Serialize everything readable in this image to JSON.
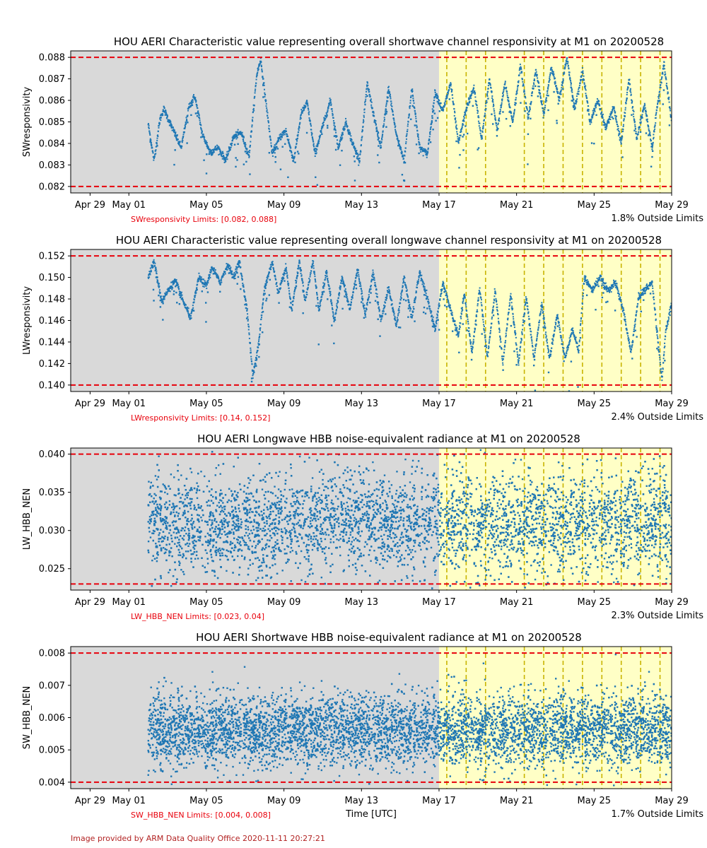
{
  "x_axis_label": "Time [UTC]",
  "credit": "Image provided by ARM Data Quality Office 2020-11-11 20:27:21",
  "colors": {
    "series": "#1f77b4",
    "limits": "#e8000b",
    "flag_lines": "#c8b400",
    "flag_region": "#ffffc6",
    "missing_region": "#d9d9d9"
  },
  "chart_data": [
    {
      "type": "scatter",
      "title": "HOU AERI Characteristic value representing overall shortwave channel responsivity at M1 on 20200528",
      "ylabel": "SWresponsivity",
      "xlabel": "",
      "x_ticks": [
        "Apr 29",
        "May 01",
        "May 05",
        "May 09",
        "May 13",
        "May 17",
        "May 21",
        "May 25",
        "May 29"
      ],
      "x_tick_days": [
        -2,
        0,
        4,
        8,
        12,
        16,
        20,
        24,
        28
      ],
      "xlim_days": [
        -3,
        28
      ],
      "ylim": [
        0.0817,
        0.0883
      ],
      "y_ticks": [
        "0.082",
        "0.083",
        "0.084",
        "0.085",
        "0.086",
        "0.087",
        "0.088"
      ],
      "limits_text": "SWresponsivity Limits: [0.082, 0.088]",
      "limits": [
        0.082,
        0.088
      ],
      "outside_text": "1.8% Outside Limits",
      "missing_region_days": [
        -3,
        16
      ],
      "flag_region_days": [
        16,
        28
      ],
      "flag_lines_days": [
        16.4,
        17.4,
        18.4,
        20.4,
        21.4,
        22.4,
        23.4,
        24.4,
        25.4,
        26.4,
        27.4
      ],
      "data_start_day": 1.0,
      "data_end_day": 28.0,
      "segments": [
        {
          "day": 1.0,
          "value": 0.0849
        },
        {
          "day": 1.3,
          "value": 0.0832
        },
        {
          "day": 1.6,
          "value": 0.0851
        },
        {
          "day": 1.8,
          "value": 0.0856
        },
        {
          "day": 2.3,
          "value": 0.0846
        },
        {
          "day": 2.7,
          "value": 0.0838
        },
        {
          "day": 3.1,
          "value": 0.0857
        },
        {
          "day": 3.4,
          "value": 0.0862
        },
        {
          "day": 3.8,
          "value": 0.0844
        },
        {
          "day": 4.2,
          "value": 0.0836
        },
        {
          "day": 4.6,
          "value": 0.0838
        },
        {
          "day": 5.0,
          "value": 0.0832
        },
        {
          "day": 5.4,
          "value": 0.0843
        },
        {
          "day": 5.8,
          "value": 0.0845
        },
        {
          "day": 6.2,
          "value": 0.0834
        },
        {
          "day": 6.6,
          "value": 0.0872
        },
        {
          "day": 6.8,
          "value": 0.0879
        },
        {
          "day": 7.1,
          "value": 0.0857
        },
        {
          "day": 7.4,
          "value": 0.0835
        },
        {
          "day": 7.8,
          "value": 0.0843
        },
        {
          "day": 8.1,
          "value": 0.0846
        },
        {
          "day": 8.5,
          "value": 0.0832
        },
        {
          "day": 8.9,
          "value": 0.0854
        },
        {
          "day": 9.2,
          "value": 0.0859
        },
        {
          "day": 9.6,
          "value": 0.0835
        },
        {
          "day": 10.0,
          "value": 0.0848
        },
        {
          "day": 10.4,
          "value": 0.086
        },
        {
          "day": 10.8,
          "value": 0.0838
        },
        {
          "day": 11.2,
          "value": 0.085
        },
        {
          "day": 11.5,
          "value": 0.0841
        },
        {
          "day": 11.9,
          "value": 0.0832
        },
        {
          "day": 12.3,
          "value": 0.0868
        },
        {
          "day": 12.7,
          "value": 0.085
        },
        {
          "day": 13.0,
          "value": 0.0838
        },
        {
          "day": 13.4,
          "value": 0.0866
        },
        {
          "day": 13.8,
          "value": 0.0844
        },
        {
          "day": 14.2,
          "value": 0.0832
        },
        {
          "day": 14.6,
          "value": 0.0866
        },
        {
          "day": 15.0,
          "value": 0.0838
        },
        {
          "day": 15.4,
          "value": 0.0835
        },
        {
          "day": 15.8,
          "value": 0.0864
        },
        {
          "day": 16.2,
          "value": 0.0855
        },
        {
          "day": 16.6,
          "value": 0.0868
        },
        {
          "day": 17.0,
          "value": 0.084
        },
        {
          "day": 17.4,
          "value": 0.0856
        },
        {
          "day": 17.8,
          "value": 0.0866
        },
        {
          "day": 18.2,
          "value": 0.0842
        },
        {
          "day": 18.6,
          "value": 0.087
        },
        {
          "day": 19.0,
          "value": 0.0846
        },
        {
          "day": 19.4,
          "value": 0.0868
        },
        {
          "day": 19.8,
          "value": 0.085
        },
        {
          "day": 20.2,
          "value": 0.0876
        },
        {
          "day": 20.6,
          "value": 0.0852
        },
        {
          "day": 21.0,
          "value": 0.0874
        },
        {
          "day": 21.4,
          "value": 0.0853
        },
        {
          "day": 21.8,
          "value": 0.0876
        },
        {
          "day": 22.2,
          "value": 0.086
        },
        {
          "day": 22.6,
          "value": 0.088
        },
        {
          "day": 23.0,
          "value": 0.0856
        },
        {
          "day": 23.4,
          "value": 0.0874
        },
        {
          "day": 23.8,
          "value": 0.085
        },
        {
          "day": 24.2,
          "value": 0.086
        },
        {
          "day": 24.6,
          "value": 0.0847
        },
        {
          "day": 25.0,
          "value": 0.0857
        },
        {
          "day": 25.4,
          "value": 0.084
        },
        {
          "day": 25.8,
          "value": 0.087
        },
        {
          "day": 26.2,
          "value": 0.0842
        },
        {
          "day": 26.6,
          "value": 0.0858
        },
        {
          "day": 27.0,
          "value": 0.0838
        },
        {
          "day": 27.3,
          "value": 0.086
        },
        {
          "day": 27.6,
          "value": 0.0877
        },
        {
          "day": 28.0,
          "value": 0.085
        }
      ]
    },
    {
      "type": "scatter",
      "title": "HOU AERI Characteristic value representing overall longwave channel responsivity at M1 on 20200528",
      "ylabel": "LWresponsivity",
      "xlabel": "",
      "x_ticks": [
        "Apr 29",
        "May 01",
        "May 05",
        "May 09",
        "May 13",
        "May 17",
        "May 21",
        "May 25",
        "May 29"
      ],
      "x_tick_days": [
        -2,
        0,
        4,
        8,
        12,
        16,
        20,
        24,
        28
      ],
      "xlim_days": [
        -3,
        28
      ],
      "ylim": [
        0.1394,
        0.1526
      ],
      "y_ticks": [
        "0.140",
        "0.142",
        "0.144",
        "0.146",
        "0.148",
        "0.150",
        "0.152"
      ],
      "limits_text": "LWresponsivity Limits: [0.14, 0.152]",
      "limits": [
        0.14,
        0.152
      ],
      "outside_text": "2.4% Outside Limits",
      "missing_region_days": [
        -3,
        16
      ],
      "flag_region_days": [
        16,
        28
      ],
      "flag_lines_days": [
        16.4,
        17.4,
        18.4,
        20.4,
        21.4,
        22.4,
        23.4,
        24.4,
        25.4,
        26.4,
        27.4
      ],
      "data_start_day": 1.0,
      "data_end_day": 28.0,
      "segments": [
        {
          "day": 1.0,
          "value": 0.15
        },
        {
          "day": 1.3,
          "value": 0.1515
        },
        {
          "day": 1.7,
          "value": 0.1478
        },
        {
          "day": 2.1,
          "value": 0.149
        },
        {
          "day": 2.4,
          "value": 0.1497
        },
        {
          "day": 2.8,
          "value": 0.1478
        },
        {
          "day": 3.2,
          "value": 0.1462
        },
        {
          "day": 3.6,
          "value": 0.15
        },
        {
          "day": 4.0,
          "value": 0.1492
        },
        {
          "day": 4.3,
          "value": 0.151
        },
        {
          "day": 4.7,
          "value": 0.1495
        },
        {
          "day": 5.1,
          "value": 0.1512
        },
        {
          "day": 5.4,
          "value": 0.15
        },
        {
          "day": 5.7,
          "value": 0.1515
        },
        {
          "day": 6.1,
          "value": 0.147
        },
        {
          "day": 6.4,
          "value": 0.1408
        },
        {
          "day": 6.7,
          "value": 0.144
        },
        {
          "day": 7.0,
          "value": 0.149
        },
        {
          "day": 7.4,
          "value": 0.1515
        },
        {
          "day": 7.7,
          "value": 0.1485
        },
        {
          "day": 8.1,
          "value": 0.151
        },
        {
          "day": 8.4,
          "value": 0.147
        },
        {
          "day": 8.8,
          "value": 0.1515
        },
        {
          "day": 9.1,
          "value": 0.1478
        },
        {
          "day": 9.5,
          "value": 0.1515
        },
        {
          "day": 9.8,
          "value": 0.147
        },
        {
          "day": 10.2,
          "value": 0.1505
        },
        {
          "day": 10.6,
          "value": 0.146
        },
        {
          "day": 11.0,
          "value": 0.15
        },
        {
          "day": 11.4,
          "value": 0.147
        },
        {
          "day": 11.8,
          "value": 0.1508
        },
        {
          "day": 12.2,
          "value": 0.1465
        },
        {
          "day": 12.6,
          "value": 0.1505
        },
        {
          "day": 13.0,
          "value": 0.146
        },
        {
          "day": 13.4,
          "value": 0.149
        },
        {
          "day": 13.8,
          "value": 0.1455
        },
        {
          "day": 14.2,
          "value": 0.15
        },
        {
          "day": 14.6,
          "value": 0.1462
        },
        {
          "day": 15.0,
          "value": 0.1505
        },
        {
          "day": 15.4,
          "value": 0.148
        },
        {
          "day": 15.8,
          "value": 0.1452
        },
        {
          "day": 16.2,
          "value": 0.1495
        },
        {
          "day": 16.6,
          "value": 0.147
        },
        {
          "day": 17.0,
          "value": 0.1445
        },
        {
          "day": 17.3,
          "value": 0.1485
        },
        {
          "day": 17.7,
          "value": 0.143
        },
        {
          "day": 18.1,
          "value": 0.149
        },
        {
          "day": 18.5,
          "value": 0.1425
        },
        {
          "day": 18.9,
          "value": 0.1488
        },
        {
          "day": 19.3,
          "value": 0.142
        },
        {
          "day": 19.7,
          "value": 0.1485
        },
        {
          "day": 20.1,
          "value": 0.142
        },
        {
          "day": 20.5,
          "value": 0.1482
        },
        {
          "day": 20.9,
          "value": 0.1425
        },
        {
          "day": 21.3,
          "value": 0.1475
        },
        {
          "day": 21.7,
          "value": 0.1425
        },
        {
          "day": 22.1,
          "value": 0.1465
        },
        {
          "day": 22.5,
          "value": 0.1425
        },
        {
          "day": 22.9,
          "value": 0.1452
        },
        {
          "day": 23.2,
          "value": 0.1432
        },
        {
          "day": 23.5,
          "value": 0.15
        },
        {
          "day": 23.9,
          "value": 0.1488
        },
        {
          "day": 24.3,
          "value": 0.15
        },
        {
          "day": 24.7,
          "value": 0.1488
        },
        {
          "day": 25.1,
          "value": 0.1495
        },
        {
          "day": 25.5,
          "value": 0.147
        },
        {
          "day": 25.9,
          "value": 0.143
        },
        {
          "day": 26.3,
          "value": 0.1482
        },
        {
          "day": 26.7,
          "value": 0.149
        },
        {
          "day": 27.0,
          "value": 0.1495
        },
        {
          "day": 27.3,
          "value": 0.144
        },
        {
          "day": 27.5,
          "value": 0.1405
        },
        {
          "day": 27.7,
          "value": 0.145
        },
        {
          "day": 28.0,
          "value": 0.1475
        }
      ]
    },
    {
      "type": "scatter",
      "title": "HOU AERI Longwave HBB noise-equivalent radiance at M1 on 20200528",
      "ylabel": "LW_HBB_NEN",
      "xlabel": "",
      "x_ticks": [
        "Apr 29",
        "May 01",
        "May 05",
        "May 09",
        "May 13",
        "May 17",
        "May 21",
        "May 25",
        "May 29"
      ],
      "x_tick_days": [
        -2,
        0,
        4,
        8,
        12,
        16,
        20,
        24,
        28
      ],
      "xlim_days": [
        -3,
        28
      ],
      "ylim": [
        0.0222,
        0.0408
      ],
      "y_ticks": [
        "0.025",
        "0.030",
        "0.035",
        "0.040"
      ],
      "limits_text": "LW_HBB_NEN Limits: [0.023, 0.04]",
      "limits": [
        0.023,
        0.04
      ],
      "outside_text": "2.3% Outside Limits",
      "missing_region_days": [
        -3,
        16
      ],
      "flag_region_days": [
        16,
        28
      ],
      "flag_lines_days": [
        16.4,
        17.4,
        18.4,
        20.4,
        21.4,
        22.4,
        23.4,
        24.4,
        25.4,
        26.4,
        27.4
      ],
      "data_start_day": 1.0,
      "data_end_day": 28.0,
      "center": 0.031,
      "spread": 0.0032
    },
    {
      "type": "scatter",
      "title": "HOU AERI Shortwave HBB noise-equivalent radiance at M1 on 20200528",
      "ylabel": "SW_HBB_NEN",
      "xlabel": "Time [UTC]",
      "x_ticks": [
        "Apr 29",
        "May 01",
        "May 05",
        "May 09",
        "May 13",
        "May 17",
        "May 21",
        "May 25",
        "May 29"
      ],
      "x_tick_days": [
        -2,
        0,
        4,
        8,
        12,
        16,
        20,
        24,
        28
      ],
      "xlim_days": [
        -3,
        28
      ],
      "ylim": [
        0.0038,
        0.0082
      ],
      "y_ticks": [
        "0.004",
        "0.005",
        "0.006",
        "0.007",
        "0.008"
      ],
      "limits_text": "SW_HBB_NEN Limits: [0.004, 0.008]",
      "limits": [
        0.004,
        0.008
      ],
      "outside_text": "1.7% Outside Limits",
      "missing_region_days": [
        -3,
        16
      ],
      "flag_region_days": [
        16,
        28
      ],
      "flag_lines_days": [
        16.4,
        17.4,
        18.4,
        20.4,
        21.4,
        22.4,
        23.4,
        24.4,
        25.4,
        26.4,
        27.4
      ],
      "data_start_day": 1.0,
      "data_end_day": 28.0,
      "center": 0.0056,
      "spread": 0.00055
    }
  ]
}
